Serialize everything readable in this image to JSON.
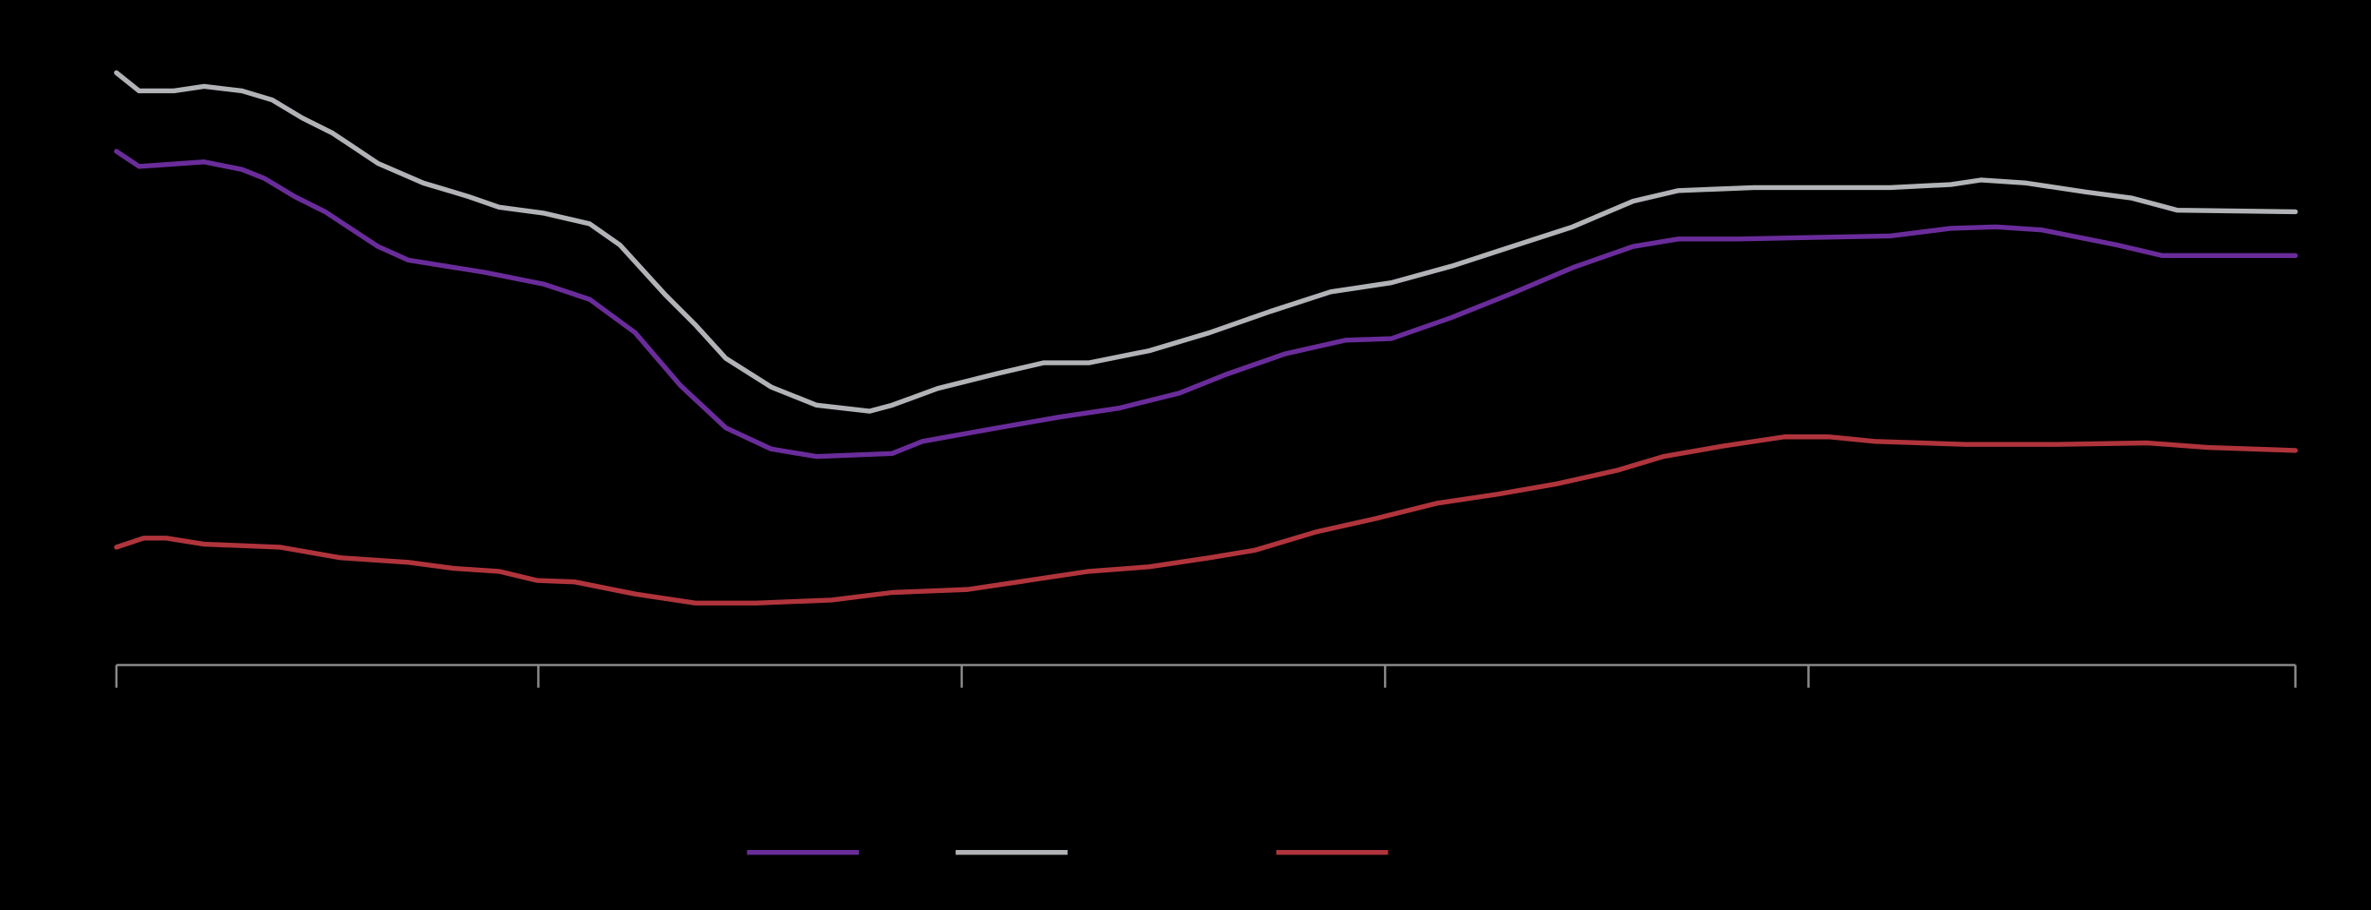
{
  "chart_data": {
    "type": "line",
    "xlim": [
      0,
      1441
    ],
    "xticks": [
      0,
      279,
      559,
      839,
      1119,
      1441
    ],
    "ylim": [
      0,
      400
    ],
    "series": [
      {
        "color": "#6a2c9a",
        "x": [
          0,
          15,
          58,
          83,
          98,
          118,
          138,
          173,
          193,
          243,
          283,
          313,
          343,
          373,
          403,
          433,
          463,
          513,
          533,
          583,
          623,
          663,
          703,
          733,
          773,
          813,
          843,
          883,
          923,
          963,
          1003,
          1033,
          1073,
          1123,
          1173,
          1213,
          1243,
          1273,
          1323,
          1353,
          1441
        ],
        "values": [
          340,
          330,
          333,
          328,
          322,
          310,
          300,
          277,
          268,
          260,
          252,
          242,
          220,
          185,
          157,
          143,
          138,
          140,
          148,
          157,
          164,
          170,
          180,
          192,
          206,
          215,
          216,
          230,
          246,
          263,
          277,
          282,
          282,
          283,
          284,
          289,
          290,
          288,
          278,
          271,
          271
        ]
      },
      {
        "color": "#b1b3b6",
        "x": [
          0,
          15,
          38,
          58,
          83,
          103,
          123,
          143,
          173,
          203,
          233,
          253,
          283,
          313,
          333,
          363,
          383,
          403,
          433,
          463,
          498,
          513,
          543,
          583,
          613,
          643,
          683,
          723,
          763,
          803,
          843,
          883,
          923,
          963,
          1003,
          1033,
          1083,
          1123,
          1173,
          1213,
          1233,
          1263,
          1303,
          1333,
          1363,
          1441
        ],
        "values": [
          392,
          380,
          380,
          383,
          380,
          374,
          362,
          352,
          332,
          319,
          310,
          303,
          299,
          292,
          278,
          245,
          225,
          203,
          184,
          172,
          168,
          172,
          183,
          193,
          200,
          200,
          208,
          220,
          234,
          247,
          253,
          264,
          277,
          290,
          307,
          314,
          316,
          316,
          316,
          318,
          321,
          319,
          313,
          309,
          301,
          300
        ]
      },
      {
        "color": "#b0343c",
        "x": [
          0,
          18,
          33,
          58,
          108,
          148,
          193,
          223,
          253,
          278,
          303,
          343,
          383,
          423,
          473,
          513,
          563,
          603,
          643,
          683,
          723,
          753,
          793,
          833,
          873,
          913,
          953,
          993,
          1023,
          1063,
          1103,
          1133,
          1163,
          1223,
          1283,
          1343,
          1383,
          1441
        ],
        "values": [
          78,
          84,
          84,
          80,
          78,
          71,
          68,
          64,
          62,
          56,
          55,
          47,
          41,
          41,
          43,
          48,
          50,
          56,
          62,
          65,
          71,
          76,
          88,
          97,
          107,
          113,
          120,
          129,
          138,
          145,
          151,
          151,
          148,
          146,
          146,
          147,
          144,
          142
        ]
      }
    ]
  }
}
